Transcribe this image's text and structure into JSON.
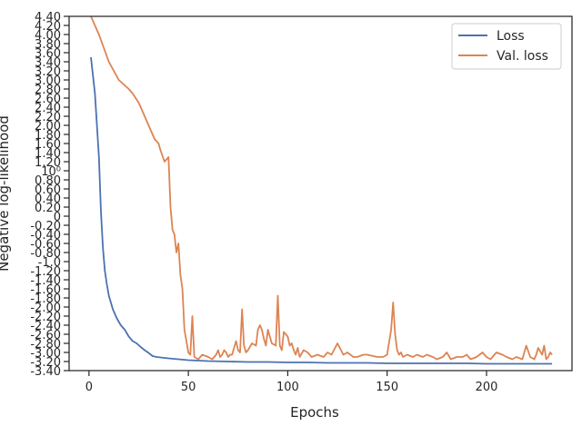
{
  "chart_data": {
    "type": "line",
    "title": "",
    "xlabel": "Epochs",
    "ylabel": "Negative log-likelihood",
    "xlim": [
      -10,
      243
    ],
    "ylim": [
      -3.4,
      4.4
    ],
    "xticks": [
      0,
      50,
      100,
      150,
      200
    ],
    "xtick_labels": [
      "0",
      "50",
      "100",
      "150",
      "200"
    ],
    "yticks": [
      -3.4,
      -3.2,
      -3.0,
      -2.8,
      -2.6,
      -2.4,
      -2.2,
      -2.0,
      -1.8,
      -1.6,
      -1.4,
      -1.2,
      -1.0,
      -0.8,
      -0.6,
      -0.4,
      -0.2,
      0,
      0.2,
      0.4,
      0.6,
      0.8,
      1.0,
      1.2,
      1.4,
      1.6,
      1.8,
      2.0,
      2.2,
      2.4,
      2.6,
      2.8,
      3.0,
      3.2,
      3.4,
      3.6,
      3.8,
      4.0,
      4.2,
      4.4
    ],
    "ytick_labels": [
      "-3.40",
      "-3.20",
      "-3.00",
      "-2.80",
      "-2.60",
      "-2.40",
      "-2.20",
      "-2.00",
      "-1.80",
      "-1.60",
      "-1.40",
      "-1.20",
      "-1.0",
      "-0.80",
      "-0.60",
      "-0.40",
      "-0.20",
      "0",
      "0.20",
      "0.40",
      "0.60",
      "0.80",
      "10⁰",
      "1.20",
      "1.40",
      "1.60",
      "1.80",
      "2.00",
      "2.20",
      "2.40",
      "2.60",
      "2.80",
      "3.00",
      "3.20",
      "3.40",
      "3.60",
      "3.80",
      "4.00",
      "4.20",
      "4.40"
    ],
    "grid": false,
    "legend_position": "top-right",
    "series": [
      {
        "name": "Loss",
        "color": "#4c72b0",
        "x": [
          1,
          3,
          5,
          6,
          7,
          8,
          9,
          10,
          12,
          14,
          16,
          18,
          20,
          22,
          24,
          26,
          28,
          30,
          32,
          34,
          36,
          40,
          45,
          50,
          55,
          60,
          70,
          80,
          90,
          100,
          110,
          120,
          130,
          140,
          150,
          160,
          170,
          180,
          190,
          200,
          210,
          220,
          233
        ],
        "y": [
          3.5,
          2.7,
          1.3,
          0.1,
          -0.7,
          -1.2,
          -1.5,
          -1.75,
          -2.05,
          -2.25,
          -2.4,
          -2.5,
          -2.65,
          -2.75,
          -2.8,
          -2.88,
          -2.95,
          -3.01,
          -3.08,
          -3.1,
          -3.11,
          -3.13,
          -3.15,
          -3.17,
          -3.18,
          -3.19,
          -3.2,
          -3.21,
          -3.21,
          -3.22,
          -3.22,
          -3.23,
          -3.23,
          -3.23,
          -3.24,
          -3.24,
          -3.24,
          -3.24,
          -3.24,
          -3.25,
          -3.25,
          -3.25,
          -3.25
        ]
      },
      {
        "name": "Val. loss",
        "color": "#dd8452",
        "x": [
          1,
          5,
          10,
          15,
          20,
          22,
          25,
          28,
          30,
          32,
          33,
          34,
          35,
          36,
          38,
          40,
          41,
          42,
          43,
          44,
          45,
          46,
          47,
          48,
          49,
          50,
          51,
          52,
          53,
          55,
          57,
          60,
          62,
          64,
          65,
          66,
          67,
          68,
          69,
          70,
          71,
          72,
          73,
          74,
          75,
          76,
          77,
          78,
          79,
          80,
          82,
          84,
          85,
          86,
          87,
          88,
          89,
          90,
          92,
          94,
          95,
          96,
          97,
          98,
          100,
          101,
          102,
          103,
          104,
          105,
          106,
          108,
          110,
          112,
          115,
          118,
          120,
          122,
          125,
          128,
          130,
          133,
          135,
          138,
          140,
          145,
          148,
          150,
          152,
          153,
          154,
          155,
          156,
          157,
          158,
          160,
          163,
          165,
          168,
          170,
          173,
          175,
          178,
          180,
          182,
          185,
          188,
          190,
          192,
          195,
          198,
          200,
          202,
          205,
          208,
          210,
          213,
          215,
          218,
          220,
          222,
          224,
          225,
          226,
          228,
          229,
          230,
          231,
          232,
          233
        ],
        "y": [
          4.4,
          4.0,
          3.4,
          3.0,
          2.8,
          2.7,
          2.5,
          2.2,
          2.0,
          1.8,
          1.7,
          1.65,
          1.6,
          1.45,
          1.2,
          1.3,
          0.2,
          -0.3,
          -0.4,
          -0.8,
          -0.6,
          -1.3,
          -1.6,
          -2.5,
          -2.75,
          -3.0,
          -3.05,
          -2.2,
          -3.1,
          -3.15,
          -3.05,
          -3.1,
          -3.15,
          -3.05,
          -2.95,
          -3.1,
          -3.05,
          -2.95,
          -3.0,
          -3.1,
          -3.05,
          -3.05,
          -2.9,
          -2.75,
          -2.95,
          -3.0,
          -2.05,
          -2.85,
          -3.0,
          -2.95,
          -2.8,
          -2.85,
          -2.5,
          -2.4,
          -2.5,
          -2.7,
          -2.85,
          -2.5,
          -2.8,
          -2.85,
          -1.75,
          -2.85,
          -2.95,
          -2.55,
          -2.65,
          -2.85,
          -2.8,
          -2.95,
          -3.05,
          -2.9,
          -3.1,
          -2.95,
          -3.0,
          -3.1,
          -3.05,
          -3.1,
          -3.0,
          -3.05,
          -2.8,
          -3.05,
          -3.0,
          -3.1,
          -3.1,
          -3.05,
          -3.05,
          -3.1,
          -3.1,
          -3.05,
          -2.5,
          -1.9,
          -2.6,
          -2.95,
          -3.05,
          -3.0,
          -3.1,
          -3.05,
          -3.1,
          -3.05,
          -3.1,
          -3.05,
          -3.1,
          -3.15,
          -3.1,
          -3.0,
          -3.15,
          -3.1,
          -3.1,
          -3.05,
          -3.15,
          -3.1,
          -3.0,
          -3.1,
          -3.15,
          -3.0,
          -3.05,
          -3.1,
          -3.15,
          -3.1,
          -3.15,
          -2.85,
          -3.1,
          -3.15,
          -3.05,
          -2.9,
          -3.05,
          -2.85,
          -3.15,
          -3.1,
          -3.0,
          -3.05
        ]
      }
    ]
  }
}
